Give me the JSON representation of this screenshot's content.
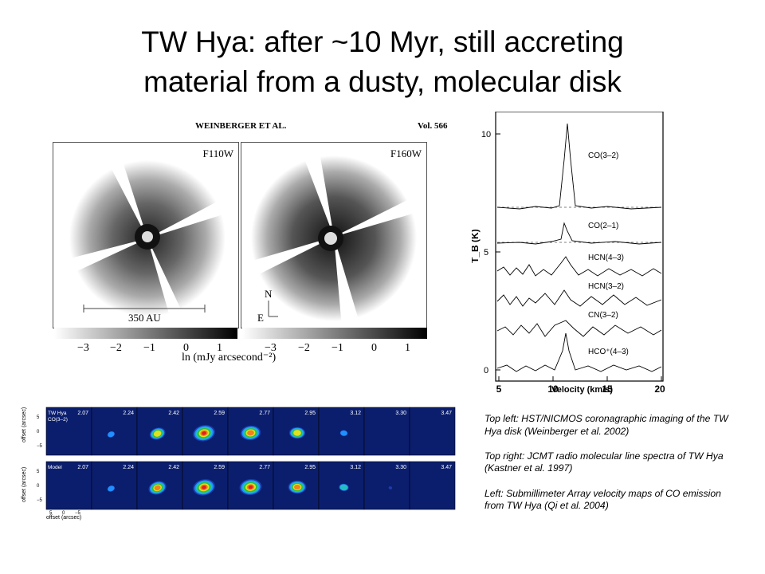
{
  "slide": {
    "title_line1": "TW Hya: after ~10 Myr, still accreting",
    "title_line2": "material from a dusty, molecular disk"
  },
  "hst_figure": {
    "header_left": "WEINBERGER ET AL.",
    "header_right": "Vol. 566",
    "panel_left_label": "F110W",
    "panel_right_label": "F160W",
    "scale_label": "350 AU",
    "compass_north": "N",
    "compass_east": "E",
    "colorbar_ticks": [
      "−3",
      "−2",
      "−1",
      "0",
      "1"
    ],
    "colorbar_label": "ln (mJy arcsecond⁻²)"
  },
  "spectra_figure": {
    "ylabel": "T_B (K)",
    "xlabel": "Velocity (km/s)",
    "xticks": [
      "5",
      "10",
      "15",
      "20"
    ],
    "yticks": [
      "0",
      "5",
      "10"
    ],
    "lines": [
      "CO(3–2)",
      "CO(2–1)",
      "HCN(4–3)",
      "HCN(3–2)",
      "CN(3–2)",
      "HCO⁺(4–3)"
    ]
  },
  "sma_maps": {
    "row1_label_a": "TW Hya",
    "row1_label_b": "CO(3–2)",
    "row2_label": "Model",
    "velocities": [
      "2.07",
      "2.24",
      "2.42",
      "2.59",
      "2.77",
      "2.95",
      "3.12",
      "3.30",
      "3.47"
    ],
    "offset_ylabel": "offset (arcsec)",
    "offset_xlabel": "offset (arcsec)",
    "axis_ticks_y": [
      "5",
      "0",
      "−5"
    ],
    "axis_ticks_x": [
      "5",
      "0",
      "−5"
    ]
  },
  "caption": {
    "p1": "Top left: HST/NICMOS coronagraphic imaging of the TW Hya disk (Weinberger et\u0003\u0003 al. 2002)",
    "p2": "Top right: JCMT radio molecular line spectra of TW Hya (Kastner et al. 1997)",
    "p3": "Left: Submillimeter Array velocity maps of CO emission from TW Hya (Qi et al. 2004)"
  }
}
